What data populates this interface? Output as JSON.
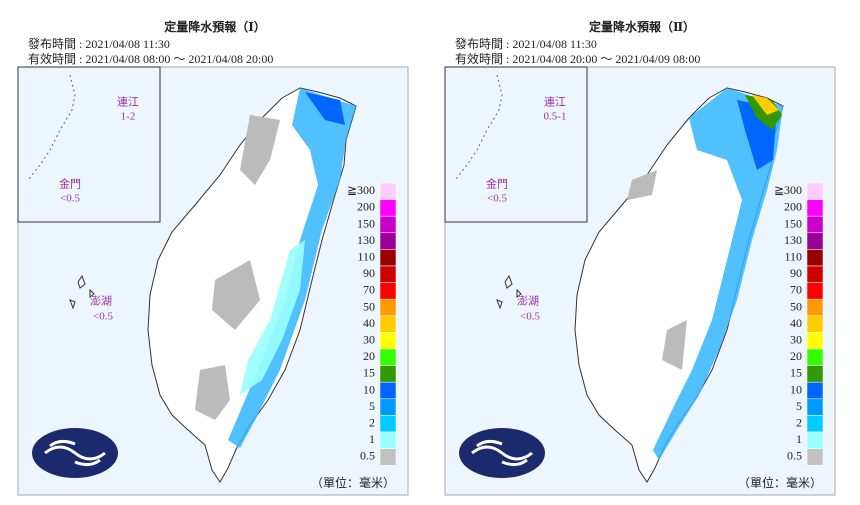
{
  "panels": [
    {
      "title": "定量降水預報（Ⅰ）",
      "issued": "發布時間 : 2021/04/08 11:30",
      "valid": "有效時間 : 2021/04/08 08:00 ～ 2021/04/08 20:00",
      "matsu": {
        "name": "連江",
        "amount": "1-2"
      },
      "kinmen": {
        "name": "金門",
        "amount": "<0.5"
      },
      "penghu": {
        "name": "澎湖",
        "amount": "<0.5"
      }
    },
    {
      "title": "定量降水預報（Ⅱ）",
      "issued": "發布時間 : 2021/04/08 11:30",
      "valid": "有效時間 : 2021/04/08 20:00 ～ 2021/04/09 08:00",
      "matsu": {
        "name": "連江",
        "amount": "0.5-1"
      },
      "kinmen": {
        "name": "金門",
        "amount": "<0.5"
      },
      "penghu": {
        "name": "澎湖",
        "amount": "<0.5"
      }
    }
  ],
  "legend": {
    "unit": "（單位：毫米）",
    "levels": [
      {
        "label": "≧300",
        "color": "#ffccff"
      },
      {
        "label": "200",
        "color": "#ff00ff"
      },
      {
        "label": "150",
        "color": "#cc00cc"
      },
      {
        "label": "130",
        "color": "#990099"
      },
      {
        "label": "110",
        "color": "#990000"
      },
      {
        "label": "90",
        "color": "#cc0000"
      },
      {
        "label": "70",
        "color": "#ff0000"
      },
      {
        "label": "50",
        "color": "#ff9900"
      },
      {
        "label": "40",
        "color": "#ffcc00"
      },
      {
        "label": "30",
        "color": "#ffff00"
      },
      {
        "label": "20",
        "color": "#33ff00"
      },
      {
        "label": "15",
        "color": "#339900"
      },
      {
        "label": "10",
        "color": "#0066ff"
      },
      {
        "label": "5",
        "color": "#0099ff"
      },
      {
        "label": "2",
        "color": "#00ccff"
      },
      {
        "label": "1",
        "color": "#99ffff"
      },
      {
        "label": "0.5",
        "color": "#c1c1c1"
      }
    ]
  }
}
